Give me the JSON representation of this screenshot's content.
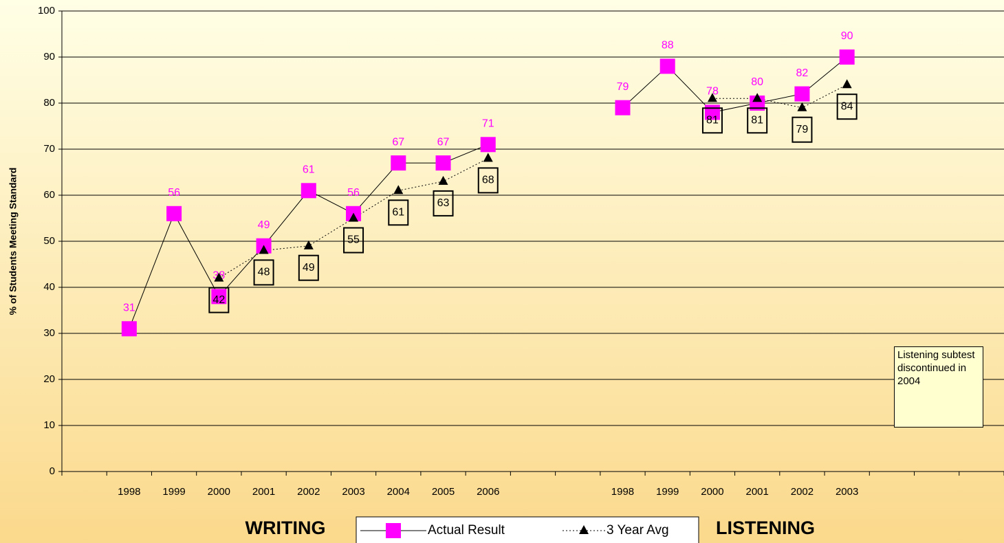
{
  "chart_data": {
    "type": "line",
    "y_label": "% of Students Meeting Standard",
    "categories": [
      null,
      "1998",
      "1999",
      "2000",
      "2001",
      "2002",
      "2003",
      "2004",
      "2005",
      "2006",
      null,
      null,
      "1998",
      "1999",
      "2000",
      "2001",
      "2002",
      "2003",
      null,
      null,
      null
    ],
    "series": [
      {
        "name": "Actual Result",
        "color": "#ff00ff",
        "values": [
          null,
          31,
          56,
          38,
          49,
          61,
          56,
          67,
          67,
          71,
          null,
          null,
          79,
          88,
          78,
          80,
          82,
          90,
          null,
          null,
          null
        ]
      },
      {
        "name": "3 Year Avg",
        "color": "#000000",
        "values": [
          null,
          null,
          null,
          42,
          48,
          49,
          55,
          61,
          63,
          68,
          null,
          null,
          null,
          null,
          81,
          81,
          79,
          84,
          null,
          null,
          null
        ]
      }
    ],
    "ylim": [
      0,
      100
    ],
    "yticks": [
      0,
      10,
      20,
      30,
      40,
      50,
      60,
      70,
      80,
      90,
      100
    ],
    "grid": true,
    "section_labels": [
      "WRITING",
      "LISTENING"
    ],
    "annotation": "Listening subtest discontinued in 2004",
    "legend": "bottom"
  }
}
